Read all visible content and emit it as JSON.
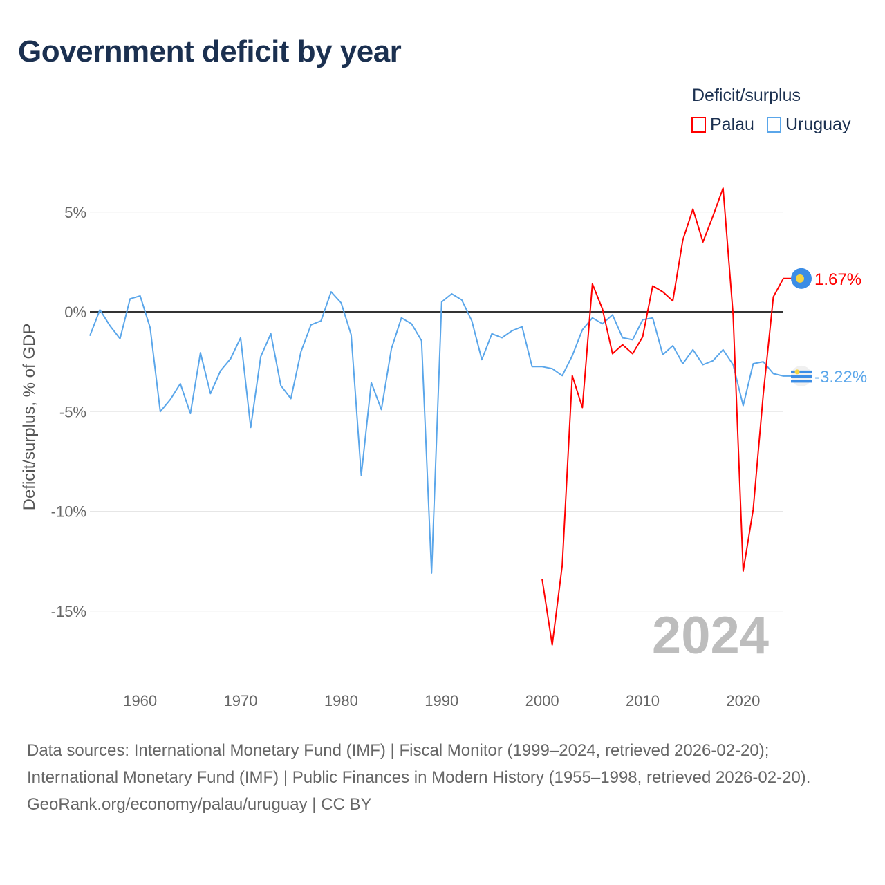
{
  "chart_data": {
    "type": "line",
    "title": "Government deficit by year",
    "ylabel": "Deficit/surplus, % of GDP",
    "xlabel": "",
    "ylim": [
      -18,
      7
    ],
    "xlim": [
      1955,
      2024
    ],
    "yticks": [
      5,
      0,
      -5,
      -10,
      -15
    ],
    "ytick_labels": [
      "5%",
      "0%",
      "-5%",
      "-10%",
      "-15%"
    ],
    "xticks": [
      1960,
      1970,
      1980,
      1990,
      2000,
      2010,
      2020
    ],
    "xtick_labels": [
      "1960",
      "1970",
      "1980",
      "1990",
      "2000",
      "2010",
      "2020"
    ],
    "grid": true,
    "legend_title": "Deficit/surplus",
    "legend_position": "top-right",
    "year_watermark": "2024",
    "series": [
      {
        "name": "Palau",
        "color": "#ff0000",
        "end_label": "1.67%",
        "start_year": 2000,
        "values": [
          -13.4,
          -16.7,
          -12.7,
          -3.2,
          -4.8,
          1.4,
          0.15,
          -2.1,
          -1.65,
          -2.1,
          -1.25,
          1.3,
          1.0,
          0.55,
          3.6,
          5.15,
          3.5,
          4.8,
          6.2,
          -0.15,
          -13.0,
          -9.9,
          -4.15,
          0.75,
          1.67
        ]
      },
      {
        "name": "Uruguay",
        "color": "#5aa6ea",
        "end_label": "-3.22%",
        "start_year": 1955,
        "values": [
          -1.2,
          0.1,
          -0.7,
          -1.35,
          0.65,
          0.8,
          -0.8,
          -5.0,
          -4.4,
          -3.6,
          -5.1,
          -2.05,
          -4.1,
          -2.95,
          -2.35,
          -1.3,
          -5.8,
          -2.25,
          -1.1,
          -3.7,
          -4.35,
          -2.0,
          -0.65,
          -0.45,
          1.0,
          0.45,
          -1.15,
          -8.2,
          -3.55,
          -4.9,
          -1.85,
          -0.3,
          -0.6,
          -1.45,
          -13.1,
          0.5,
          0.9,
          0.6,
          -0.45,
          -2.4,
          -1.1,
          -1.3,
          -0.95,
          -0.75,
          -2.75,
          -2.75,
          -2.85,
          -3.2,
          -2.2,
          -0.9,
          -0.3,
          -0.6,
          -0.15,
          -1.3,
          -1.4,
          -0.4,
          -0.3,
          -2.15,
          -1.7,
          -2.6,
          -1.9,
          -2.65,
          -2.45,
          -1.9,
          -2.65,
          -4.7,
          -2.6,
          -2.5,
          -3.1,
          -3.22
        ]
      }
    ]
  },
  "footer": {
    "sources": "Data sources: International Monetary Fund (IMF) | Fiscal Monitor (1999–2024, retrieved 2026-02-20); International Monetary Fund (IMF) | Public Finances in Modern History (1955–1998, retrieved 2026-02-20).",
    "credit": "GeoRank.org/economy/palau/uruguay | CC BY"
  }
}
